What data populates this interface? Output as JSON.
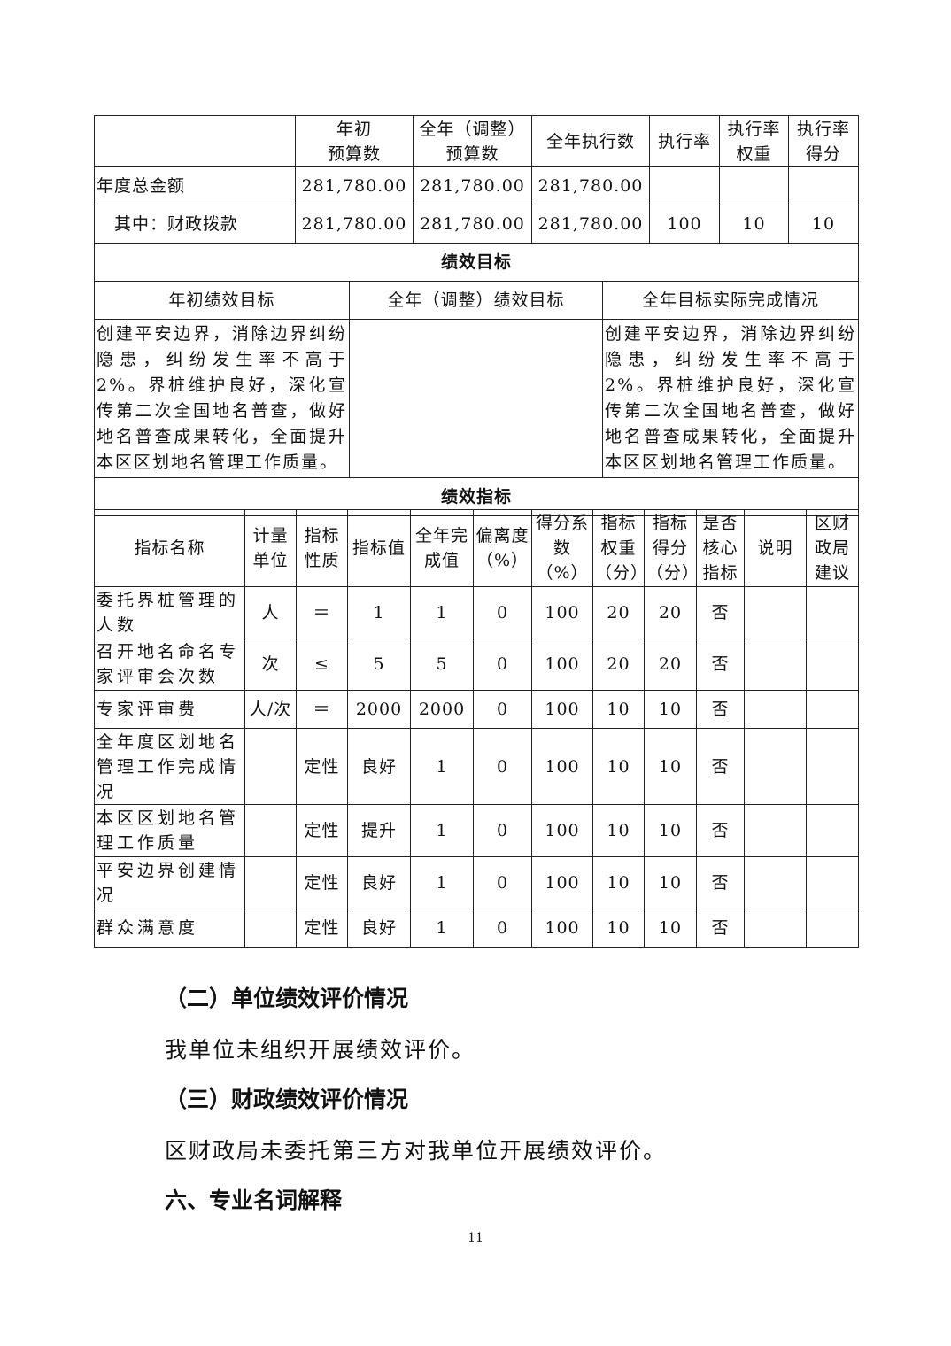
{
  "budget": {
    "headers": [
      "",
      "年初\n预算数",
      "全年（调整）\n预算数",
      "全年执行数",
      "执行率",
      "执行率\n权重",
      "执行率\n得分"
    ],
    "rows": [
      [
        "年度总金额",
        "281,780.00",
        "281,780.00",
        "281,780.00",
        "",
        "",
        ""
      ],
      [
        "其中：财政拨款",
        "281,780.00",
        "281,780.00",
        "281,780.00",
        "100",
        "10",
        "10"
      ]
    ]
  },
  "goals": {
    "section_title": "绩效目标",
    "headers": [
      "年初绩效目标",
      "全年（调整）绩效目标",
      "全年目标实际完成情况"
    ],
    "values": [
      "创建平安边界，消除边界纠纷隐患，纠纷发生率不高于2%。界桩维护良好，深化宣传第二次全国地名普查，做好地名普查成果转化，全面提升本区区划地名管理工作质量。",
      "",
      "创建平安边界，消除边界纠纷隐患，纠纷发生率不高于2%。界桩维护良好，深化宣传第二次全国地名普查，做好地名普查成果转化，全面提升本区区划地名管理工作质量。"
    ]
  },
  "indicators": {
    "section_title": "绩效指标",
    "headers": [
      "指标名称",
      "计量单位",
      "指标性质",
      "指标值",
      "全年完成值",
      "偏离度（%）",
      "得分系数（%）",
      "指标权重（分）",
      "指标得分（分）",
      "是否核心指标",
      "说明",
      "区财政局建议"
    ],
    "rows": [
      [
        "委托界桩管理的人数",
        "人",
        "＝",
        "1",
        "1",
        "0",
        "100",
        "20",
        "20",
        "否",
        "",
        ""
      ],
      [
        "召开地名命名专家评审会次数",
        "次",
        "≤",
        "5",
        "5",
        "0",
        "100",
        "20",
        "20",
        "否",
        "",
        ""
      ],
      [
        "专家评审费",
        "人/次",
        "＝",
        "2000",
        "2000",
        "0",
        "100",
        "10",
        "10",
        "否",
        "",
        ""
      ],
      [
        "全年度区划地名管理工作完成情况",
        "",
        "定性",
        "良好",
        "1",
        "0",
        "100",
        "10",
        "10",
        "否",
        "",
        ""
      ],
      [
        "本区区划地名管理工作质量",
        "",
        "定性",
        "提升",
        "1",
        "0",
        "100",
        "10",
        "10",
        "否",
        "",
        ""
      ],
      [
        "平安边界创建情况",
        "",
        "定性",
        "良好",
        "1",
        "0",
        "100",
        "10",
        "10",
        "否",
        "",
        ""
      ],
      [
        "群众满意度",
        "",
        "定性",
        "良好",
        "1",
        "0",
        "100",
        "10",
        "10",
        "否",
        "",
        ""
      ]
    ]
  },
  "sections": [
    {
      "heading": "（二）单位绩效评价情况",
      "text": "我单位未组织开展绩效评价。"
    },
    {
      "heading": "（三）财政绩效评价情况",
      "text": "区财政局未委托第三方对我单位开展绩效评价。"
    },
    {
      "heading": "六、专业名词解释"
    }
  ],
  "page_number": "11"
}
